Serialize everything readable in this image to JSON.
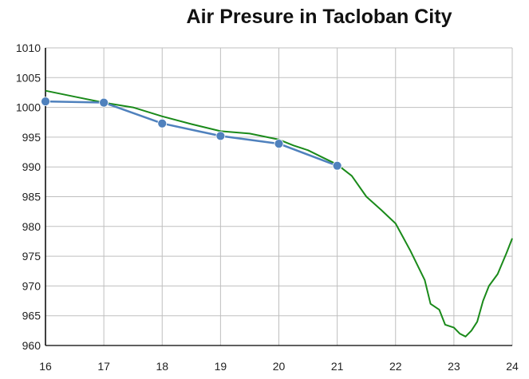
{
  "chart_data": {
    "type": "line",
    "title": "Air Presure in Tacloban City",
    "xlabel": "",
    "ylabel": "",
    "xlim": [
      16,
      24
    ],
    "ylim": [
      960,
      1010
    ],
    "x_ticks": [
      16,
      17,
      18,
      19,
      20,
      21,
      22,
      23,
      24
    ],
    "y_ticks": [
      960,
      965,
      970,
      975,
      980,
      985,
      990,
      995,
      1000,
      1005,
      1010
    ],
    "grid": true,
    "legend": "none",
    "series": [
      {
        "color": "#1a8a1a",
        "x": [
          16,
          16.5,
          17,
          17.5,
          18,
          18.5,
          19,
          19.5,
          20,
          20.25,
          20.5,
          20.75,
          21,
          21.25,
          21.5,
          21.75,
          22,
          22.25,
          22.5,
          22.6,
          22.75,
          22.85,
          23,
          23.1,
          23.2,
          23.3,
          23.4,
          23.5,
          23.6,
          23.75,
          23.9,
          24
        ],
        "y": [
          1002.8,
          1001.8,
          1000.8,
          1000.0,
          998.5,
          997.2,
          996.0,
          995.6,
          994.6,
          993.6,
          992.8,
          991.6,
          990.4,
          988.5,
          985.0,
          982.8,
          980.5,
          976.0,
          971.0,
          967.0,
          966.0,
          963.5,
          963.0,
          962.0,
          961.5,
          962.5,
          964.0,
          967.5,
          970.0,
          972.0,
          975.5,
          978.0
        ]
      },
      {
        "color": "#4f81bd",
        "markers": true,
        "x": [
          16,
          17,
          18,
          19,
          20,
          21
        ],
        "y": [
          1001.0,
          1000.8,
          997.3,
          995.2,
          993.9,
          990.2
        ]
      }
    ],
    "annotations": []
  }
}
